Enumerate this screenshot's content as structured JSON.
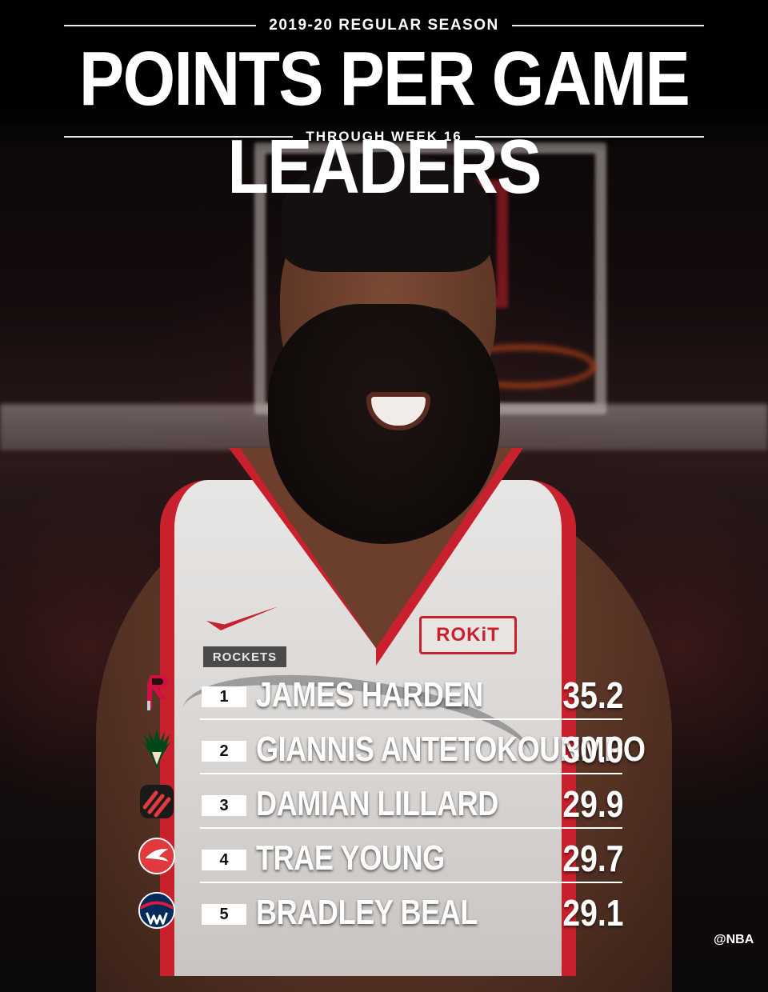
{
  "header": {
    "season": "2019-20 REGULAR SEASON",
    "title": "POINTS PER GAME LEADERS",
    "subtitle": "THROUGH WEEK 16"
  },
  "jersey": {
    "team_tag": "ROCKETS",
    "sponsor": "ROKiT"
  },
  "leaders": [
    {
      "rank": "1",
      "name": "JAMES HARDEN",
      "ppg": "35.2",
      "team_icon": "rockets-logo-icon",
      "color": "#ce1141"
    },
    {
      "rank": "2",
      "name": "GIANNIS ANTETOKOUNMPO",
      "ppg": "30.0",
      "team_icon": "bucks-logo-icon",
      "color": "#00471b"
    },
    {
      "rank": "3",
      "name": "DAMIAN LILLARD",
      "ppg": "29.9",
      "team_icon": "blazers-logo-icon",
      "color": "#e03a3e"
    },
    {
      "rank": "4",
      "name": "TRAE YOUNG",
      "ppg": "29.7",
      "team_icon": "hawks-logo-icon",
      "color": "#e03a3e"
    },
    {
      "rank": "5",
      "name": "BRADLEY BEAL",
      "ppg": "29.1",
      "team_icon": "wizards-logo-icon",
      "color": "#002b5c"
    }
  ],
  "watermark": "@NBA",
  "colors": {
    "rockets_red": "#c8202c",
    "background": "#0c0a0b",
    "text": "#ffffff"
  }
}
